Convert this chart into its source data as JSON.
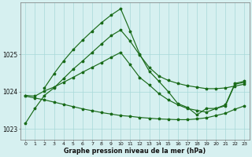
{
  "bg_color": "#d6f0f0",
  "line_color": "#1a6b1a",
  "grid_color": "#a8d8d8",
  "xlabel": "Graphe pression niveau de la mer (hPa)",
  "xlim": [
    -0.5,
    23.5
  ],
  "ylim": [
    1022.72,
    1026.38
  ],
  "yticks": [
    1023,
    1024,
    1025
  ],
  "xticks": [
    0,
    1,
    2,
    3,
    4,
    5,
    6,
    7,
    8,
    9,
    10,
    11,
    12,
    13,
    14,
    15,
    16,
    17,
    18,
    19,
    20,
    21,
    22,
    23
  ],
  "series_A_x": [
    0,
    1,
    2,
    3,
    4,
    5,
    6,
    7,
    8,
    9,
    10,
    11,
    12,
    13,
    14,
    15,
    16,
    17,
    18,
    19,
    20,
    21,
    22,
    23
  ],
  "series_A_y": [
    1023.15,
    1023.55,
    1023.9,
    1024.1,
    1024.35,
    1024.6,
    1024.82,
    1025.05,
    1025.28,
    1025.5,
    1025.65,
    1025.35,
    1024.98,
    1024.65,
    1024.42,
    1024.3,
    1024.22,
    1024.16,
    1024.12,
    1024.08,
    1024.08,
    1024.1,
    1024.15,
    1024.2
  ],
  "series_B_x": [
    2,
    3,
    4,
    5,
    6,
    7,
    8,
    9,
    10,
    11,
    12,
    13,
    14,
    15,
    16,
    17,
    18,
    19,
    20,
    21,
    22,
    23
  ],
  "series_B_y": [
    1024.1,
    1024.48,
    1024.82,
    1025.12,
    1025.38,
    1025.62,
    1025.85,
    1026.05,
    1026.22,
    1025.62,
    1025.0,
    1024.55,
    1024.28,
    1024.0,
    1023.68,
    1023.58,
    1023.38,
    1023.55,
    1023.55,
    1023.65,
    1024.22,
    1024.28
  ],
  "series_C_x": [
    0,
    1,
    2,
    3,
    4,
    5,
    6,
    7,
    8,
    9,
    10,
    11,
    12,
    13,
    14,
    15,
    16,
    17,
    18,
    19,
    20,
    21,
    22,
    23
  ],
  "series_C_y": [
    1023.9,
    1023.88,
    1024.02,
    1024.12,
    1024.25,
    1024.38,
    1024.52,
    1024.65,
    1024.78,
    1024.92,
    1025.05,
    1024.72,
    1024.38,
    1024.18,
    1023.95,
    1023.78,
    1023.65,
    1023.55,
    1023.5,
    1023.45,
    1023.55,
    1023.62,
    1024.2,
    1024.25
  ],
  "series_D_x": [
    0,
    1,
    2,
    3,
    4,
    5,
    6,
    7,
    8,
    9,
    10,
    11,
    12,
    13,
    14,
    15,
    16,
    17,
    18,
    19,
    20,
    21,
    22,
    23
  ],
  "series_D_y": [
    1023.88,
    1023.83,
    1023.78,
    1023.72,
    1023.66,
    1023.6,
    1023.54,
    1023.49,
    1023.44,
    1023.4,
    1023.36,
    1023.34,
    1023.31,
    1023.29,
    1023.27,
    1023.26,
    1023.25,
    1023.25,
    1023.27,
    1023.3,
    1023.36,
    1023.42,
    1023.53,
    1023.62
  ]
}
